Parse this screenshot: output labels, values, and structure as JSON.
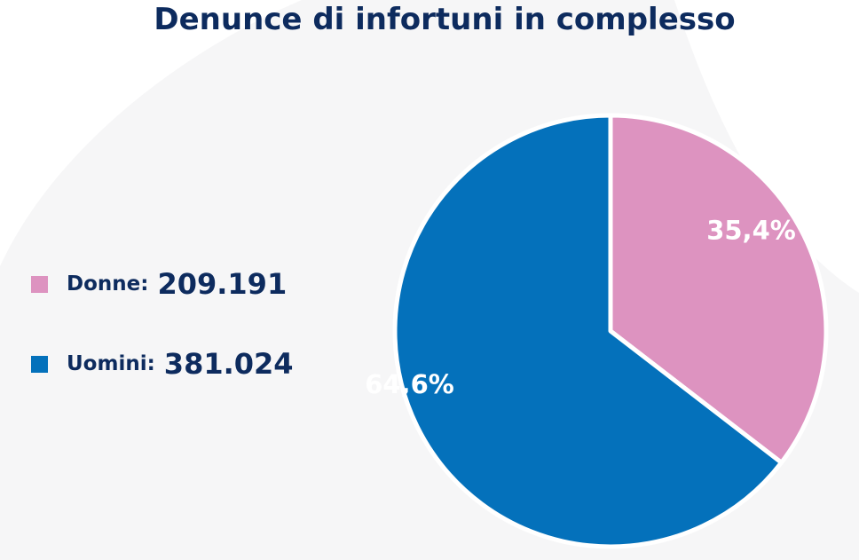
{
  "chart_data": {
    "type": "pie",
    "title": "Denunce di infortuni in complesso",
    "slices": [
      {
        "name": "Donne",
        "label": "Donne:",
        "value": 209191,
        "display_value": "209.191",
        "percent": 35.4,
        "percent_label": "35,4%",
        "color": "#dd93c0"
      },
      {
        "name": "Uomini",
        "label": "Uomini:",
        "value": 381024,
        "display_value": "381.024",
        "percent": 64.6,
        "percent_label": "64,6%",
        "color": "#0471bb"
      }
    ],
    "legend_position": "left",
    "start_angle_deg": 0,
    "direction": "clockwise"
  },
  "colors": {
    "title": "#0d2b5e",
    "background": "#ffffff",
    "background_shape": "#f6f6f7",
    "slice_border": "#ffffff"
  }
}
